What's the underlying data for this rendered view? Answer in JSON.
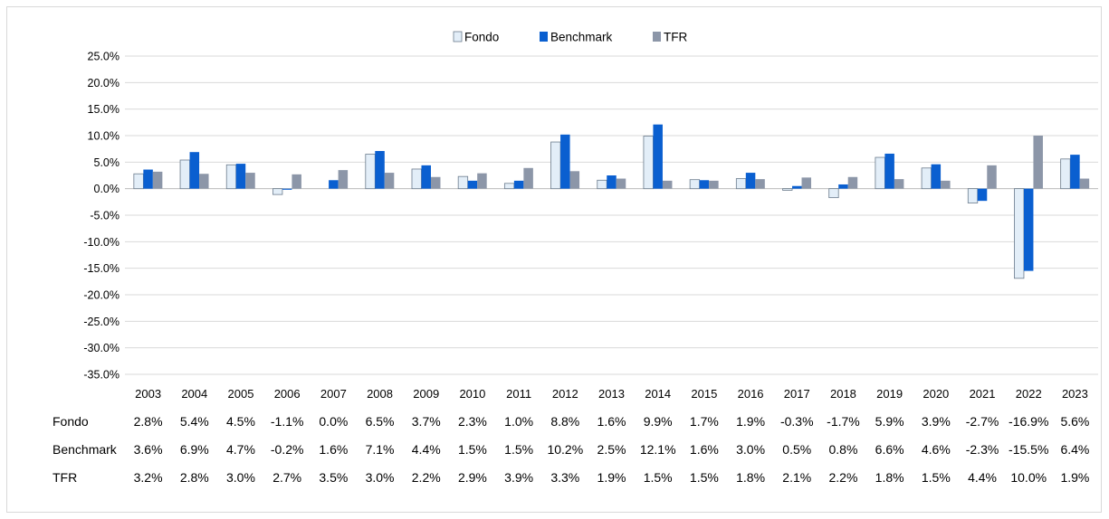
{
  "chart_data": {
    "type": "bar",
    "categories": [
      "2003",
      "2004",
      "2005",
      "2006",
      "2007",
      "2008",
      "2009",
      "2010",
      "2011",
      "2012",
      "2013",
      "2014",
      "2015",
      "2016",
      "2017",
      "2018",
      "2019",
      "2020",
      "2021",
      "2022",
      "2023"
    ],
    "series": [
      {
        "name": "Fondo",
        "values": [
          2.8,
          5.4,
          4.5,
          -1.1,
          0.0,
          6.5,
          3.7,
          2.3,
          1.0,
          8.8,
          1.6,
          9.9,
          1.7,
          1.9,
          -0.3,
          -1.7,
          5.9,
          3.9,
          -2.7,
          -16.9,
          5.6
        ],
        "labels": [
          "2.8%",
          "5.4%",
          "4.5%",
          "-1.1%",
          "0.0%",
          "6.5%",
          "3.7%",
          "2.3%",
          "1.0%",
          "8.8%",
          "1.6%",
          "9.9%",
          "1.7%",
          "1.9%",
          "-0.3%",
          "-1.7%",
          "5.9%",
          "3.9%",
          "-2.7%",
          "-16.9%",
          "5.6%"
        ]
      },
      {
        "name": "Benchmark",
        "values": [
          3.6,
          6.9,
          4.7,
          -0.2,
          1.6,
          7.1,
          4.4,
          1.5,
          1.5,
          10.2,
          2.5,
          12.1,
          1.6,
          3.0,
          0.5,
          0.8,
          6.6,
          4.6,
          -2.3,
          -15.5,
          6.4
        ],
        "labels": [
          "3.6%",
          "6.9%",
          "4.7%",
          "-0.2%",
          "1.6%",
          "7.1%",
          "4.4%",
          "1.5%",
          "1.5%",
          "10.2%",
          "2.5%",
          "12.1%",
          "1.6%",
          "3.0%",
          "0.5%",
          "0.8%",
          "6.6%",
          "4.6%",
          "-2.3%",
          "-15.5%",
          "6.4%"
        ]
      },
      {
        "name": "TFR",
        "values": [
          3.2,
          2.8,
          3.0,
          2.7,
          3.5,
          3.0,
          2.2,
          2.9,
          3.9,
          3.3,
          1.9,
          1.5,
          1.5,
          1.8,
          2.1,
          2.2,
          1.8,
          1.5,
          4.4,
          10.0,
          1.9
        ],
        "labels": [
          "3.2%",
          "2.8%",
          "3.0%",
          "2.7%",
          "3.5%",
          "3.0%",
          "2.2%",
          "2.9%",
          "3.9%",
          "3.3%",
          "1.9%",
          "1.5%",
          "1.5%",
          "1.8%",
          "2.1%",
          "2.2%",
          "1.8%",
          "1.5%",
          "4.4%",
          "10.0%",
          "1.9%"
        ]
      }
    ],
    "colors": {
      "Fondo": "#e3eef8",
      "Fondo_stroke": "#6b7b8c",
      "Benchmark": "#0a5fd0",
      "TFR": "#8c96a8",
      "grid": "#d9d9d9"
    },
    "ylim": [
      -35,
      25
    ],
    "yticks": [
      "25.0%",
      "20.0%",
      "15.0%",
      "10.0%",
      "5.0%",
      "0.0%",
      "-5.0%",
      "-10.0%",
      "-15.0%",
      "-20.0%",
      "-25.0%",
      "-30.0%",
      "-35.0%"
    ],
    "ytick_values": [
      25,
      20,
      15,
      10,
      5,
      0,
      -5,
      -10,
      -15,
      -20,
      -25,
      -30,
      -35
    ],
    "grid": true,
    "legend_position": "top-center"
  }
}
